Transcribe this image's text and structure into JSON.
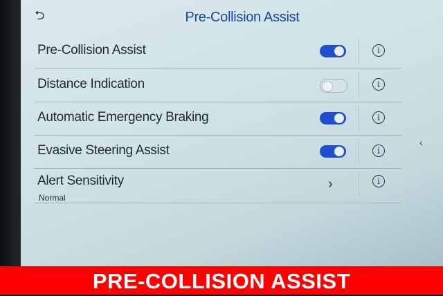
{
  "screen": {
    "title": "Pre-Collision Assist",
    "back_icon": "back-arrow-icon",
    "items": [
      {
        "label": "Pre-Collision Assist",
        "type": "toggle",
        "enabled": true
      },
      {
        "label": "Distance Indication",
        "type": "toggle",
        "enabled": false
      },
      {
        "label": "Automatic Emergency Braking",
        "type": "toggle",
        "enabled": true
      },
      {
        "label": "Evasive Steering Assist",
        "type": "toggle",
        "enabled": true
      },
      {
        "label": "Alert Sensitivity",
        "type": "submenu",
        "value": "Normal"
      }
    ],
    "info_glyph": "i",
    "chevron_glyph": "›",
    "side_chevron_glyph": "‹",
    "accent_color": "#1e4fd0"
  },
  "banner": {
    "text": "PRE-COLLISION ASSIST",
    "color": "#ff0000"
  }
}
